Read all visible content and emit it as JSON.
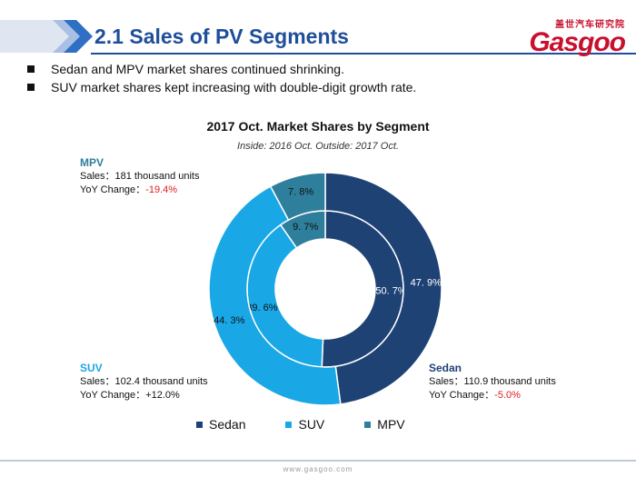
{
  "header": {
    "title": "2.1 Sales of PV Segments",
    "logo_cn": "盖世汽车研究院",
    "logo_main": "Gasgoo"
  },
  "bullets": [
    "Sedan and MPV market shares continued shrinking.",
    "SUV market shares kept increasing with double-digit growth rate."
  ],
  "annotations": {
    "mpv": {
      "name": "MPV",
      "sales": "Sales：181 thousand units",
      "yoy_label": "YoY Change：",
      "yoy_value": "-19.4%"
    },
    "suv": {
      "name": "SUV",
      "sales": "Sales：102.4 thousand units",
      "yoy_label": "YoY Change：",
      "yoy_value": "+12.0%"
    },
    "sedan": {
      "name": "Sedan",
      "sales": "Sales：110.9 thousand units",
      "yoy_label": "YoY Change：",
      "yoy_value": "-5.0%"
    }
  },
  "footer": {
    "text": "www.gasgoo.com"
  },
  "colors": {
    "sedan": "#1f4275",
    "suv": "#1aa7e6",
    "mpv": "#2e7f9c",
    "accent_blue": "#1f4e9a",
    "negative": "#e02020"
  },
  "chart_data": {
    "type": "pie",
    "title": "2017 Oct. Market Shares by Segment",
    "subtitle": "Inside: 2016 Oct.   Outside: 2017 Oct.",
    "categories": [
      "Sedan",
      "SUV",
      "MPV"
    ],
    "series": [
      {
        "name": "Inside: 2016 Oct.",
        "values": [
          50.7,
          39.6,
          9.7
        ],
        "labels": [
          "50. 7%",
          "39. 6%",
          "9. 7%"
        ]
      },
      {
        "name": "Outside: 2017 Oct.",
        "values": [
          47.9,
          44.3,
          7.8
        ],
        "labels": [
          "47. 9%",
          "44. 3%",
          "7. 8%"
        ]
      }
    ],
    "legend": [
      "Sedan",
      "SUV",
      "MPV"
    ],
    "legend_position": "bottom"
  }
}
